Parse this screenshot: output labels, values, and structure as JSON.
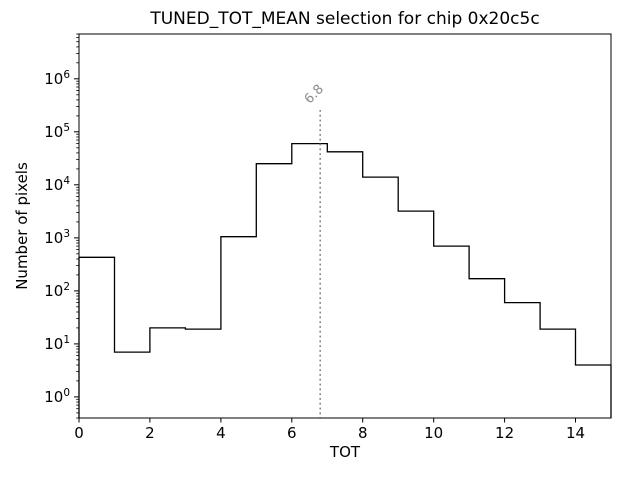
{
  "chart_data": {
    "type": "bar",
    "subtype": "step-histogram",
    "title": "TUNED_TOT_MEAN selection for chip 0x20c5c",
    "xlabel": "TOT",
    "ylabel": "Number of pixels",
    "yscale": "log",
    "xlim": [
      0,
      15
    ],
    "ylim": [
      0.4,
      7000000
    ],
    "bin_edges": [
      0,
      1,
      2,
      3,
      4,
      5,
      6,
      7,
      8,
      9,
      10,
      11,
      12,
      13,
      14,
      15
    ],
    "values": [
      430,
      7,
      20,
      19,
      1050,
      25000,
      60000,
      42000,
      14000,
      3200,
      700,
      170,
      60,
      19,
      4
    ],
    "x_ticks": [
      0,
      2,
      4,
      6,
      8,
      10,
      12,
      14
    ],
    "y_tick_exponents": [
      0,
      1,
      2,
      3,
      4,
      5,
      6
    ],
    "line_color": "#000000",
    "background": "#ffffff",
    "grid": "off",
    "legend": "none",
    "vline": {
      "x": 6.8,
      "label": "6.8",
      "style": "dotted",
      "color": "#848484"
    }
  }
}
